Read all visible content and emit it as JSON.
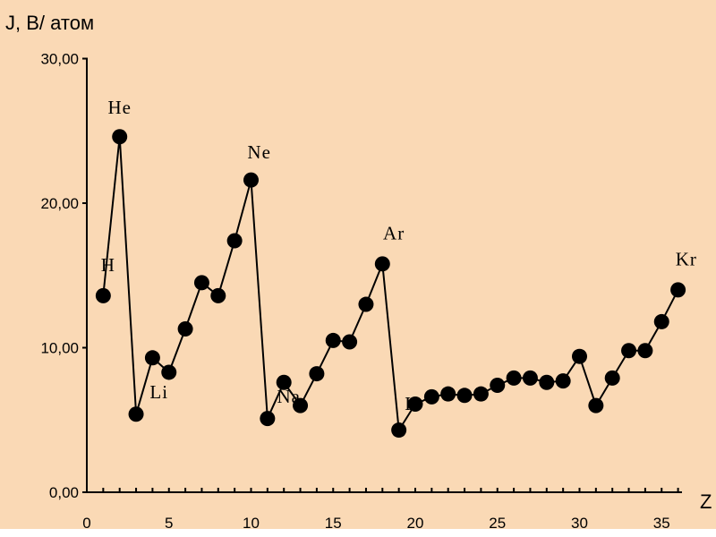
{
  "chart_data": {
    "type": "line",
    "ylabel": "J,  В/ атом",
    "xlabel": "Z",
    "xlim": [
      0,
      36
    ],
    "ylim": [
      0,
      30
    ],
    "x_ticks": [
      0,
      5,
      10,
      15,
      20,
      25,
      30,
      35
    ],
    "y_ticks": [
      0,
      10,
      20,
      30
    ],
    "y_tick_labels": [
      "0,00",
      "10,00",
      "20,00",
      "30,00"
    ],
    "grid": false,
    "colors": {
      "background": "#fad9b5",
      "marker": "#000000",
      "line": "#000000"
    },
    "series": [
      {
        "x": [
          1,
          2,
          3,
          4,
          5,
          6,
          7,
          8,
          9,
          10,
          11,
          12,
          13,
          14,
          15,
          16,
          17,
          18,
          19,
          20,
          21,
          22,
          23,
          24,
          25,
          26,
          27,
          28,
          29,
          30,
          31,
          32,
          33,
          34,
          35,
          36
        ],
        "values": [
          13.6,
          24.6,
          5.4,
          9.3,
          8.3,
          11.3,
          14.5,
          13.6,
          17.4,
          21.6,
          5.1,
          7.6,
          6.0,
          8.2,
          10.5,
          10.4,
          13.0,
          15.8,
          4.3,
          6.1,
          6.6,
          6.8,
          6.7,
          6.8,
          7.4,
          7.9,
          7.9,
          7.6,
          7.7,
          9.4,
          6.0,
          7.9,
          9.8,
          9.8,
          11.8,
          14.0
        ]
      }
    ],
    "annotations": [
      {
        "text": "He",
        "x": 2,
        "y": 26.2
      },
      {
        "text": "H",
        "x": 1.3,
        "y": 15.3
      },
      {
        "text": "Ne",
        "x": 10.5,
        "y": 23.1
      },
      {
        "text": "Li",
        "x": 4.4,
        "y": 6.5
      },
      {
        "text": "Na",
        "x": 12.3,
        "y": 6.2
      },
      {
        "text": "Ar",
        "x": 18.7,
        "y": 17.5
      },
      {
        "text": "K",
        "x": 19.8,
        "y": 5.7
      },
      {
        "text": "Kr",
        "x": 36.5,
        "y": 15.7
      }
    ]
  }
}
